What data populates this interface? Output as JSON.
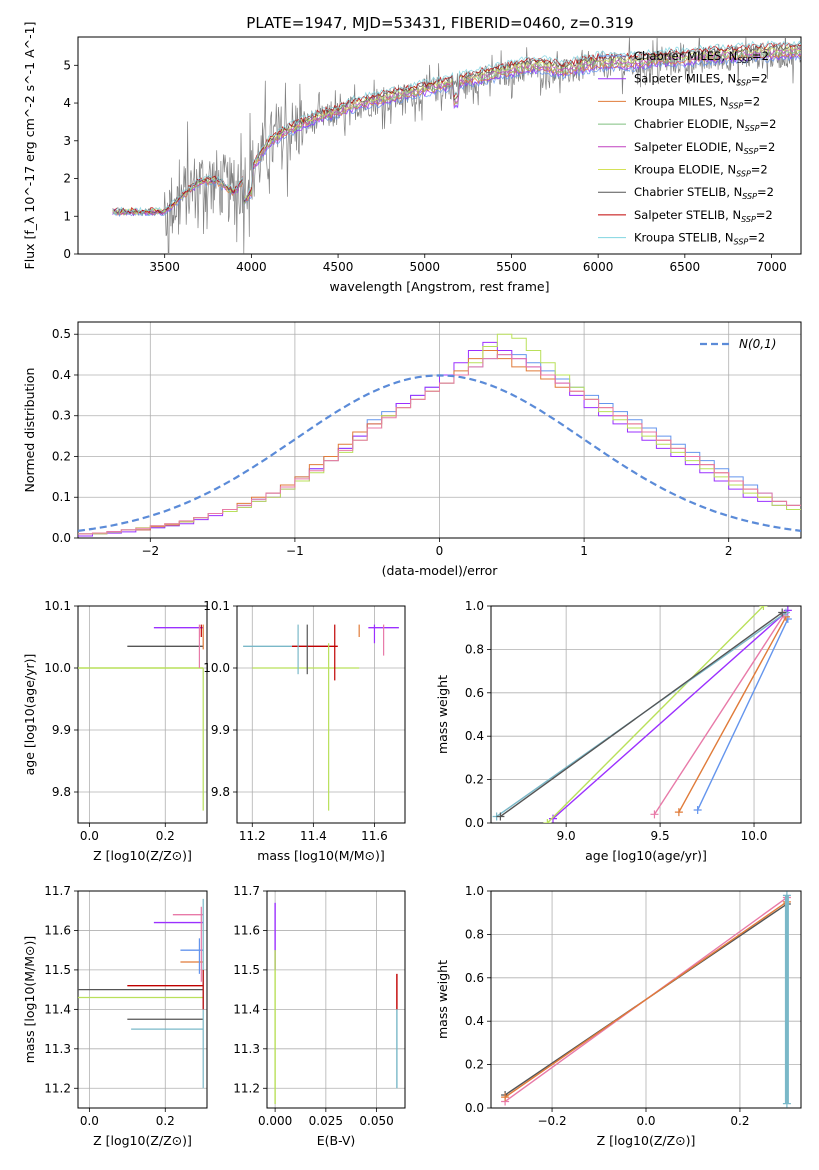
{
  "figure": {
    "title": "PLATE=1947, MJD=53431, FIBERID=0460, z=0.319"
  },
  "colors": {
    "chabrier_miles": "#6495ed",
    "salpeter_miles": "#9b30ff",
    "kroupa_miles": "#e07b39",
    "chabrier_elodie": "#7fbf7f",
    "salpeter_elodie": "#c040c0",
    "kroupa_elodie": "#d4e157",
    "chabrier_stelib": "#555555",
    "salpeter_stelib": "#c00000",
    "kroupa_stelib": "#80d4e0",
    "pink": "#e87aa8",
    "lime": "#b9e05a",
    "teal": "#7ab8c8",
    "data_spectrum": "#808080",
    "normal_curve": "#5b8bd8"
  },
  "chart_data": [
    {
      "type": "line",
      "id": "spectrum",
      "xlabel": "wavelength [Angstrom, rest frame]",
      "ylabel": "Flux [f_λ 10^-17 erg cm^-2 s^-1 A^-1]",
      "xlim": [
        3000,
        7170
      ],
      "ylim": [
        0,
        5.75
      ],
      "xticks": [
        3500,
        4000,
        4500,
        5000,
        5500,
        6000,
        6500,
        7000
      ],
      "yticks": [
        0,
        1,
        2,
        3,
        4,
        5
      ],
      "grid": false,
      "legend_position": "top-right",
      "data_start": 3200,
      "data_end": 7170,
      "data_envelope": {
        "x": [
          3200,
          3500,
          3600,
          3700,
          3800,
          3900,
          4000,
          4100,
          4200,
          4300,
          4400,
          4500,
          4600,
          4700,
          4800,
          4900,
          5000,
          5100,
          5200,
          5300,
          5400,
          5500,
          5600,
          5700,
          5800,
          5900,
          6000,
          6100,
          6200,
          6300,
          6400,
          6500,
          6600,
          6700,
          6800,
          6900,
          7000,
          7170
        ],
        "y": [
          1.1,
          1.1,
          1.5,
          1.9,
          1.9,
          1.6,
          2.2,
          2.9,
          3.2,
          3.4,
          3.6,
          3.7,
          3.9,
          4.0,
          4.1,
          4.2,
          4.3,
          4.4,
          4.5,
          4.6,
          4.7,
          4.8,
          4.9,
          4.9,
          4.8,
          4.9,
          5.0,
          5.0,
          5.0,
          5.05,
          5.1,
          5.1,
          5.15,
          5.2,
          5.2,
          5.25,
          5.25,
          5.3
        ]
      },
      "series": [
        {
          "name": "Chabrier MILES, N_SSP=2",
          "label_main": "Chabrier MILES, N",
          "label_sub": "SSP",
          "label_end": "=2",
          "color_key": "chabrier_miles"
        },
        {
          "name": "Salpeter MILES, N_SSP=2",
          "label_main": "Salpeter MILES, N",
          "label_sub": "SSP",
          "label_end": "=2",
          "color_key": "salpeter_miles"
        },
        {
          "name": "Kroupa MILES, N_SSP=2",
          "label_main": "Kroupa MILES, N",
          "label_sub": "SSP",
          "label_end": "=2",
          "color_key": "kroupa_miles"
        },
        {
          "name": "Chabrier ELODIE, N_SSP=2",
          "label_main": "Chabrier ELODIE, N",
          "label_sub": "SSP",
          "label_end": "=2",
          "color_key": "chabrier_elodie"
        },
        {
          "name": "Salpeter ELODIE, N_SSP=2",
          "label_main": "Salpeter ELODIE, N",
          "label_sub": "SSP",
          "label_end": "=2",
          "color_key": "salpeter_elodie"
        },
        {
          "name": "Kroupa ELODIE, N_SSP=2",
          "label_main": "Kroupa ELODIE, N",
          "label_sub": "SSP",
          "label_end": "=2",
          "color_key": "kroupa_elodie"
        },
        {
          "name": "Chabrier STELIB, N_SSP=2",
          "label_main": "Chabrier STELIB, N",
          "label_sub": "SSP",
          "label_end": "=2",
          "color_key": "chabrier_stelib"
        },
        {
          "name": "Salpeter STELIB, N_SSP=2",
          "label_main": "Salpeter STELIB, N",
          "label_sub": "SSP",
          "label_end": "=2",
          "color_key": "salpeter_stelib"
        },
        {
          "name": "Kroupa STELIB, N_SSP=2",
          "label_main": "Kroupa STELIB, N",
          "label_sub": "SSP",
          "label_end": "=2",
          "color_key": "kroupa_stelib"
        }
      ]
    },
    {
      "type": "histogram",
      "id": "residuals",
      "xlabel": "(data-model)/error",
      "ylabel": "Normed distribution",
      "xlim": [
        -2.5,
        2.5
      ],
      "ylim": [
        0,
        0.53
      ],
      "xticks": [
        -2,
        -1,
        0,
        1,
        2
      ],
      "xtick_labels": [
        "−2",
        "−1",
        "0",
        "1",
        "2"
      ],
      "yticks": [
        0.0,
        0.1,
        0.2,
        0.3,
        0.4,
        0.5
      ],
      "ytick_labels": [
        "0.0",
        "0.1",
        "0.2",
        "0.3",
        "0.4",
        "0.5"
      ],
      "grid": true,
      "legend_label": "N(0,1)",
      "legend_position": "top-right",
      "bin_width": 0.1,
      "hist_series": [
        {
          "color_key": "chabrier_miles",
          "values": [
            0.01,
            0.01,
            0.015,
            0.02,
            0.02,
            0.025,
            0.03,
            0.04,
            0.05,
            0.06,
            0.07,
            0.08,
            0.095,
            0.11,
            0.13,
            0.15,
            0.17,
            0.2,
            0.22,
            0.25,
            0.29,
            0.31,
            0.33,
            0.35,
            0.37,
            0.38,
            0.4,
            0.42,
            0.44,
            0.45,
            0.45,
            0.43,
            0.41,
            0.39,
            0.37,
            0.35,
            0.33,
            0.31,
            0.29,
            0.27,
            0.25,
            0.23,
            0.21,
            0.19,
            0.17,
            0.15,
            0.13,
            0.11,
            0.09,
            0.08
          ]
        },
        {
          "color_key": "salpeter_miles",
          "values": [
            0.005,
            0.01,
            0.012,
            0.015,
            0.02,
            0.025,
            0.03,
            0.035,
            0.045,
            0.055,
            0.065,
            0.075,
            0.09,
            0.1,
            0.12,
            0.14,
            0.17,
            0.19,
            0.22,
            0.25,
            0.28,
            0.3,
            0.33,
            0.35,
            0.37,
            0.4,
            0.43,
            0.46,
            0.48,
            0.46,
            0.44,
            0.42,
            0.4,
            0.38,
            0.35,
            0.32,
            0.3,
            0.28,
            0.26,
            0.24,
            0.22,
            0.2,
            0.18,
            0.16,
            0.14,
            0.12,
            0.1,
            0.09,
            0.08,
            0.07
          ]
        },
        {
          "color_key": "kroupa_miles",
          "values": [
            0.01,
            0.012,
            0.015,
            0.02,
            0.02,
            0.028,
            0.032,
            0.04,
            0.05,
            0.06,
            0.07,
            0.085,
            0.1,
            0.11,
            0.13,
            0.15,
            0.18,
            0.2,
            0.23,
            0.26,
            0.28,
            0.3,
            0.32,
            0.34,
            0.36,
            0.38,
            0.41,
            0.44,
            0.46,
            0.44,
            0.42,
            0.41,
            0.39,
            0.37,
            0.36,
            0.34,
            0.32,
            0.3,
            0.28,
            0.26,
            0.24,
            0.22,
            0.2,
            0.18,
            0.16,
            0.14,
            0.12,
            0.1,
            0.09,
            0.08
          ]
        },
        {
          "color_key": "lime",
          "values": [
            0.01,
            0.01,
            0.015,
            0.02,
            0.025,
            0.03,
            0.035,
            0.04,
            0.05,
            0.06,
            0.065,
            0.075,
            0.09,
            0.1,
            0.12,
            0.14,
            0.16,
            0.19,
            0.21,
            0.24,
            0.27,
            0.3,
            0.32,
            0.34,
            0.36,
            0.38,
            0.4,
            0.43,
            0.47,
            0.5,
            0.49,
            0.46,
            0.43,
            0.4,
            0.37,
            0.34,
            0.31,
            0.29,
            0.27,
            0.25,
            0.23,
            0.21,
            0.19,
            0.17,
            0.15,
            0.13,
            0.11,
            0.1,
            0.08,
            0.07
          ]
        },
        {
          "color_key": "pink",
          "values": [
            0.01,
            0.012,
            0.016,
            0.02,
            0.024,
            0.03,
            0.035,
            0.042,
            0.05,
            0.06,
            0.07,
            0.08,
            0.095,
            0.11,
            0.125,
            0.145,
            0.165,
            0.19,
            0.215,
            0.24,
            0.27,
            0.295,
            0.32,
            0.34,
            0.36,
            0.38,
            0.4,
            0.42,
            0.44,
            0.45,
            0.44,
            0.42,
            0.4,
            0.38,
            0.36,
            0.34,
            0.32,
            0.3,
            0.28,
            0.26,
            0.24,
            0.22,
            0.2,
            0.18,
            0.16,
            0.14,
            0.12,
            0.11,
            0.09,
            0.08
          ]
        }
      ],
      "normal_curve": {
        "mean": 0,
        "sigma": 1
      }
    },
    {
      "type": "errorbar",
      "id": "age-vs-Z",
      "xlabel": "Z [log10(Z/Z⊙)]",
      "ylabel": "age  [log10(age/yr)]",
      "xlim": [
        -0.03,
        0.31
      ],
      "ylim": [
        9.75,
        10.1
      ],
      "xticks": [
        0.0,
        0.2
      ],
      "xtick_labels": [
        "0.0",
        "0.2"
      ],
      "yticks": [
        9.8,
        9.9,
        10.0,
        10.1
      ],
      "ytick_labels": [
        "9.8",
        "9.9",
        "10.0",
        "10.1"
      ],
      "grid": true
    },
    {
      "type": "errorbar",
      "id": "age-vs-mass",
      "xlabel": "mass [log10(M/M⊙)]",
      "ylabel": "",
      "xlim": [
        11.15,
        11.7
      ],
      "ylim": [
        9.75,
        10.1
      ],
      "xticks": [
        11.2,
        11.4,
        11.6
      ],
      "xtick_labels": [
        "11.2",
        "11.4",
        "11.6"
      ],
      "yticks": [
        9.8,
        9.9,
        10.0,
        10.1
      ],
      "ytick_labels": [
        "9.8",
        "9.9",
        "10.0",
        "10.1"
      ],
      "grid": true
    },
    {
      "type": "line",
      "id": "weight-vs-age",
      "xlabel": "age  [log10(age/yr)]",
      "ylabel": "mass weight",
      "xlim": [
        8.6,
        10.25
      ],
      "ylim": [
        0,
        1
      ],
      "xticks": [
        9.0,
        9.5,
        10.0
      ],
      "xtick_labels": [
        "9.0",
        "9.5",
        "10.0"
      ],
      "yticks": [
        0.0,
        0.2,
        0.4,
        0.6,
        0.8,
        1.0
      ],
      "ytick_labels": [
        "0.0",
        "0.2",
        "0.4",
        "0.6",
        "0.8",
        "1.0"
      ],
      "grid": true,
      "series": [
        {
          "color_key": "chabrier_miles",
          "x": [
            9.7,
            10.18
          ],
          "y": [
            0.06,
            0.94
          ]
        },
        {
          "color_key": "kroupa_miles",
          "x": [
            9.6,
            10.17
          ],
          "y": [
            0.05,
            0.95
          ]
        },
        {
          "color_key": "pink",
          "x": [
            9.47,
            10.16
          ],
          "y": [
            0.04,
            0.96
          ]
        },
        {
          "color_key": "salpeter_miles",
          "x": [
            8.93,
            10.18
          ],
          "y": [
            0.02,
            0.98
          ]
        },
        {
          "color_key": "lime",
          "x": [
            8.9,
            10.05
          ],
          "y": [
            0.0,
            1.0
          ]
        },
        {
          "color_key": "teal",
          "x": [
            8.63,
            10.17
          ],
          "y": [
            0.03,
            0.97
          ]
        },
        {
          "color_key": "chabrier_stelib",
          "x": [
            8.65,
            10.15
          ],
          "y": [
            0.03,
            0.97
          ]
        }
      ]
    },
    {
      "type": "errorbar",
      "id": "mass-vs-Z",
      "xlabel": "Z [log10(Z/Z⊙)]",
      "ylabel": "mass [log10(M/M⊙)]",
      "xlim": [
        -0.03,
        0.31
      ],
      "ylim": [
        11.15,
        11.7
      ],
      "xticks": [
        0.0,
        0.2
      ],
      "xtick_labels": [
        "0.0",
        "0.2"
      ],
      "yticks": [
        11.2,
        11.3,
        11.4,
        11.5,
        11.6,
        11.7
      ],
      "ytick_labels": [
        "11.2",
        "11.3",
        "11.4",
        "11.5",
        "11.6",
        "11.7"
      ],
      "grid": true
    },
    {
      "type": "errorbar",
      "id": "mass-vs-ebv",
      "xlabel": "E(B-V)",
      "ylabel": "",
      "xlim": [
        -0.004,
        0.064
      ],
      "ylim": [
        11.15,
        11.7
      ],
      "xticks": [
        0.0,
        0.025,
        0.05
      ],
      "xtick_labels": [
        "0.000",
        "0.025",
        "0.050"
      ],
      "yticks": [
        11.2,
        11.3,
        11.4,
        11.5,
        11.6,
        11.7
      ],
      "ytick_labels": [
        "11.2",
        "11.3",
        "11.4",
        "11.5",
        "11.6",
        "11.7"
      ],
      "grid": true
    },
    {
      "type": "line",
      "id": "weight-vs-Z",
      "xlabel": "Z [log10(Z/Z⊙)]",
      "ylabel": "mass weight",
      "xlim": [
        -0.33,
        0.33
      ],
      "ylim": [
        0,
        1
      ],
      "xticks": [
        -0.2,
        0.0,
        0.2
      ],
      "xtick_labels": [
        "−0.2",
        "0.0",
        "0.2"
      ],
      "yticks": [
        0.0,
        0.2,
        0.4,
        0.6,
        0.8,
        1.0
      ],
      "ytick_labels": [
        "0.0",
        "0.2",
        "0.4",
        "0.6",
        "0.8",
        "1.0"
      ],
      "grid": true,
      "series": [
        {
          "color_key": "chabrier_stelib",
          "x": [
            -0.3,
            0.3
          ],
          "y": [
            0.06,
            0.94
          ]
        },
        {
          "color_key": "pink",
          "x": [
            -0.3,
            0.3
          ],
          "y": [
            0.03,
            0.97
          ]
        },
        {
          "color_key": "kroupa_miles",
          "x": [
            -0.3,
            0.3
          ],
          "y": [
            0.05,
            0.95
          ]
        },
        {
          "color_key": "teal",
          "x": [
            0.3,
            0.3
          ],
          "y": [
            0.02,
            0.98
          ]
        }
      ]
    }
  ]
}
